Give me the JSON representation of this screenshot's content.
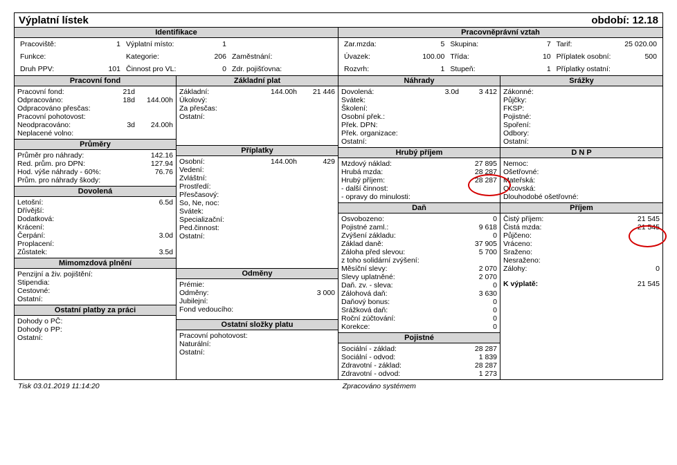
{
  "title": "Výplatní lístek",
  "period_label": "období: 12.18",
  "ident": {
    "head": "Identifikace",
    "pracoviste_l": "Pracoviště:",
    "pracoviste": "1",
    "vyplmisto_l": "Výplatní místo:",
    "vyplmisto": "1",
    "funkce_l": "Funkce:",
    "funkce": "",
    "kategorie_l": "Kategorie:",
    "kategorie": "206",
    "zamestnani_l": "Zaměstnání:",
    "zamestnani": "",
    "druhppv_l": "Druh PPV:",
    "druhppv": "101",
    "cinnost_l": "Činnost pro VL:",
    "cinnost": "0",
    "zdrpoj_l": "Zdr. pojišťovna:",
    "zdrpoj": ""
  },
  "ppv": {
    "head": "Pracovněprávní vztah",
    "zarmzda_l": "Zar.mzda:",
    "zarmzda": "5",
    "skupina_l": "Skupina:",
    "skupina": "7",
    "tarif_l": "Tarif:",
    "tarif": "25 020.00",
    "uvazek_l": "Úvazek:",
    "uvazek": "100.00",
    "trida_l": "Třída:",
    "trida": "10",
    "priplos_l": "Příplatek osobní:",
    "priplos": "500",
    "rozvrh_l": "Rozvrh:",
    "rozvrh": "1",
    "stupen_l": "Stupeň:",
    "stupen": "1",
    "priplost_l": "Příplatky ostatní:",
    "priplost": ""
  },
  "fond": {
    "head": "Pracovní fond",
    "rows": [
      [
        "Pracovní fond:",
        "21d",
        ""
      ],
      [
        "Odpracováno:",
        "18d",
        "144.00h"
      ],
      [
        "Odpracováno přesčas:",
        "",
        ""
      ],
      [
        "Pracovní pohotovost:",
        "",
        ""
      ],
      [
        "Neodpracováno:",
        "3d",
        "24.00h"
      ],
      [
        "Neplacené volno:",
        "",
        ""
      ]
    ]
  },
  "zakl": {
    "head": "Základní plat",
    "rows": [
      [
        "Základní:",
        "144.00h",
        "21 446"
      ],
      [
        "Úkolový:",
        "",
        ""
      ],
      [
        "Za přesčas:",
        "",
        ""
      ],
      [
        "Ostatní:",
        "",
        ""
      ]
    ]
  },
  "nahr": {
    "head": "Náhrady",
    "rows": [
      [
        "Dovolená:",
        "3.0d",
        "3 412"
      ],
      [
        "Svátek:",
        "",
        ""
      ],
      [
        "Školení:",
        "",
        ""
      ],
      [
        "Osobní přek.:",
        "",
        ""
      ],
      [
        "Přek. DPN:",
        "",
        ""
      ],
      [
        "Přek. organizace:",
        "",
        ""
      ],
      [
        "Ostatní:",
        "",
        ""
      ]
    ]
  },
  "srazky": {
    "head": "Srážky",
    "rows": [
      [
        "Zákonné:",
        ""
      ],
      [
        "Půjčky:",
        ""
      ],
      [
        "FKSP:",
        ""
      ],
      [
        "Pojistné:",
        ""
      ],
      [
        "Spoření:",
        ""
      ],
      [
        "Odbory:",
        ""
      ],
      [
        "Ostatní:",
        ""
      ]
    ]
  },
  "prumery": {
    "head": "Průměry",
    "rows": [
      [
        "Průměr pro náhrady:",
        "142.16"
      ],
      [
        "Red. prům. pro DPN:",
        "127.94"
      ],
      [
        "Hod. výše náhrady - 60%:",
        "76.76"
      ],
      [
        "Prům. pro náhrady škody:",
        ""
      ]
    ]
  },
  "pripl": {
    "head": "Příplatky",
    "rows": [
      [
        "Osobní:",
        "144.00h",
        "429"
      ],
      [
        "Vedení:",
        "",
        ""
      ],
      [
        "Zvláštní:",
        "",
        ""
      ],
      [
        "Prostředí:",
        "",
        ""
      ],
      [
        "Přesčasový:",
        "",
        ""
      ],
      [
        "So, Ne, noc:",
        "",
        ""
      ],
      [
        "Svátek:",
        "",
        ""
      ],
      [
        "Specializační:",
        "",
        ""
      ],
      [
        "Ped.činnost:",
        "",
        ""
      ],
      [
        "Ostatní:",
        "",
        ""
      ]
    ]
  },
  "hruby": {
    "head": "Hrubý příjem",
    "rows": [
      [
        "Mzdový náklad:",
        "27 895"
      ],
      [
        "Hrubá mzda:",
        "28 287"
      ],
      [
        "Hrubý příjem:",
        "28 287"
      ],
      [
        " - další činnost:",
        ""
      ],
      [
        " - opravy do minulosti:",
        ""
      ]
    ]
  },
  "dnp": {
    "head": "D N P",
    "rows": [
      [
        "Nemoc:",
        ""
      ],
      [
        "Ošetřovné:",
        ""
      ],
      [
        "Mateřská:",
        ""
      ],
      [
        "Otcovská:",
        ""
      ],
      [
        "Dlouhodobé ošetřovné:",
        ""
      ]
    ]
  },
  "dov": {
    "head": "Dovolená",
    "rows": [
      [
        "Letošní:",
        "6.5d"
      ],
      [
        "Dřívější:",
        ""
      ],
      [
        "Dodatková:",
        ""
      ],
      [
        "Krácení:",
        ""
      ],
      [
        "Čerpání:",
        "3.0d"
      ],
      [
        "Proplacení:",
        ""
      ],
      [
        "Zůstatek:",
        "3.5d"
      ]
    ]
  },
  "dan": {
    "head": "Daň",
    "rows": [
      [
        "Osvobozeno:",
        "0"
      ],
      [
        "Pojistné zaml.:",
        "9 618"
      ],
      [
        "Zvýšení základu:",
        "0"
      ],
      [
        "Základ daně:",
        "37 905"
      ],
      [
        "Záloha před slevou:",
        "5 700"
      ],
      [
        "z toho solidární zvýšení:",
        ""
      ],
      [
        "Měsíční slevy:",
        "2 070"
      ],
      [
        "Slevy uplatněné:",
        "2 070"
      ],
      [
        "Daň. zv. - sleva:",
        "0"
      ],
      [
        "Zálohová daň:",
        "3 630"
      ],
      [
        "Daňový bonus:",
        "0"
      ],
      [
        "Srážková daň:",
        "0"
      ],
      [
        "Roční zúčtování:",
        "0"
      ],
      [
        "Korekce:",
        "0"
      ]
    ]
  },
  "prijem": {
    "head": "Příjem",
    "rows": [
      [
        "Čistý příjem:",
        "21 545"
      ],
      [
        "Čistá mzda:",
        "21 545"
      ],
      [
        "Půjčeno:",
        ""
      ],
      [
        "Vráceno:",
        ""
      ],
      [
        "Sraženo:",
        ""
      ],
      [
        "Nesraženo:",
        ""
      ],
      [
        "Zálohy:",
        "0"
      ]
    ],
    "kvypl_l": "K výplatě:",
    "kvypl": "21 545"
  },
  "mimo": {
    "head": "Mimomzdová plnění",
    "rows": [
      [
        "Penzijní a živ. pojištění:",
        ""
      ],
      [
        "Stipendia:",
        ""
      ],
      [
        "Cestovné:",
        ""
      ],
      [
        "Ostatní:",
        ""
      ]
    ]
  },
  "odm": {
    "head": "Odměny",
    "rows": [
      [
        "Prémie:",
        ""
      ],
      [
        "Odměny:",
        "3 000"
      ],
      [
        "Jubilejní:",
        ""
      ],
      [
        "Fond vedoucího:",
        ""
      ]
    ]
  },
  "ostplat": {
    "head": "Ostatní platby za práci",
    "rows": [
      [
        "Dohody o PČ:",
        ""
      ],
      [
        "Dohody o PP:",
        ""
      ],
      [
        "Ostatní:",
        ""
      ]
    ]
  },
  "ostsloz": {
    "head": "Ostatní složky platu",
    "rows": [
      [
        "Pracovní pohotovost:",
        ""
      ],
      [
        "Naturální:",
        ""
      ],
      [
        "Ostatní:",
        ""
      ]
    ]
  },
  "poj": {
    "head": "Pojistné",
    "rows": [
      [
        "Sociální - základ:",
        "28 287"
      ],
      [
        "Sociální - odvod:",
        "1 839"
      ],
      [
        "Zdravotní - základ:",
        "28 287"
      ],
      [
        "Zdravotní - odvod:",
        "1 273"
      ]
    ]
  },
  "footer": {
    "left": "Tisk  03.01.2019  11:14:20",
    "center": "Zpracováno systémem"
  }
}
